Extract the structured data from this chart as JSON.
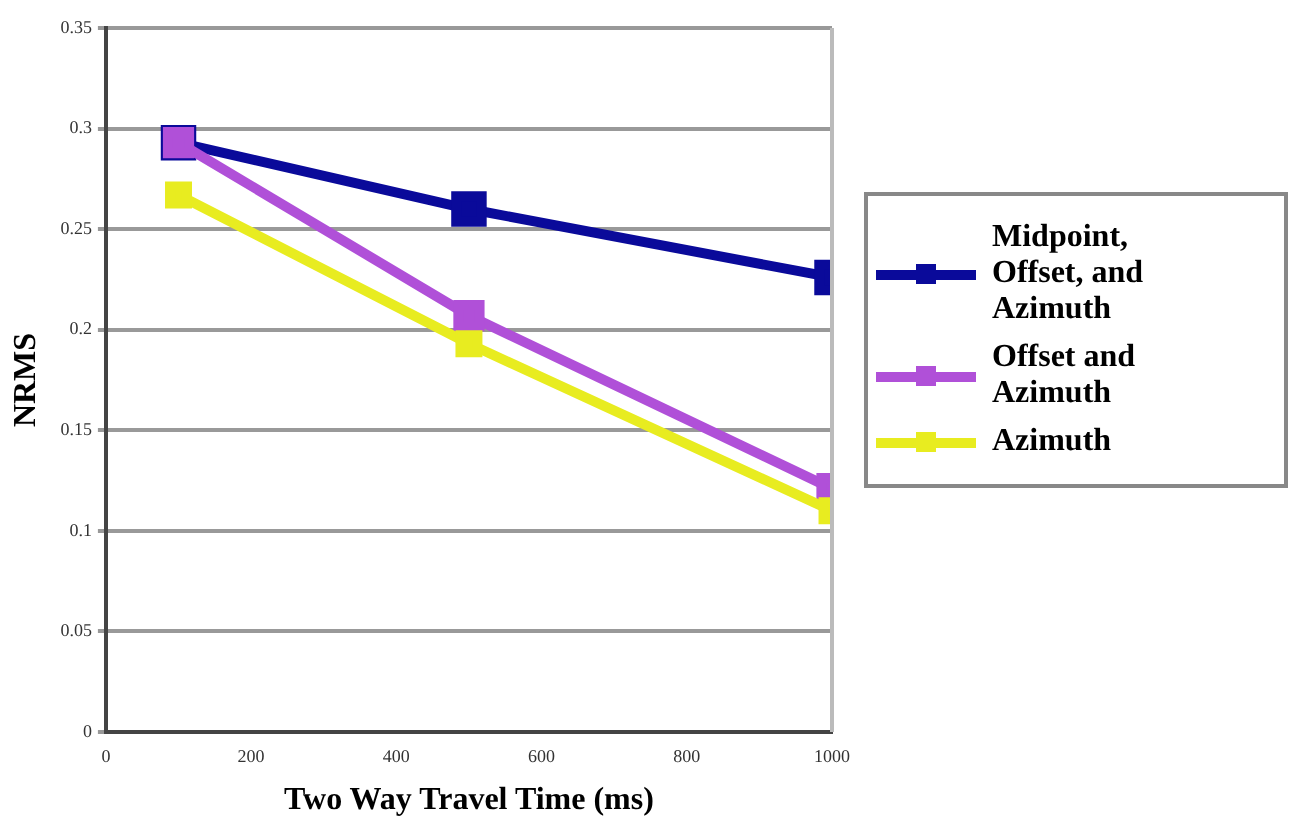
{
  "chart_data": {
    "type": "line",
    "xlabel": "Two Way Travel Time (ms)",
    "ylabel": "NRMS",
    "x": [
      100,
      500,
      1000
    ],
    "series": [
      {
        "name": "Midpoint, Offset, and Azimuth",
        "color": "#0a0a9a",
        "values": [
          0.293,
          0.26,
          0.226
        ]
      },
      {
        "name": "Offset and Azimuth",
        "color": "#b050d8",
        "values": [
          0.293,
          0.207,
          0.121
        ]
      },
      {
        "name": "Azimuth",
        "color": "#e8ec20",
        "values": [
          0.267,
          0.193,
          0.11
        ]
      }
    ],
    "xlim": [
      0,
      1000
    ],
    "xticks": [
      0,
      200,
      400,
      600,
      800,
      1000
    ],
    "ylim": [
      0,
      0.35
    ],
    "yticks": [
      0,
      0.05,
      0.1,
      0.15,
      0.2,
      0.25,
      0.3,
      0.35
    ],
    "grid": "y",
    "legend": "right",
    "marker": "square",
    "line_style": "solid"
  }
}
